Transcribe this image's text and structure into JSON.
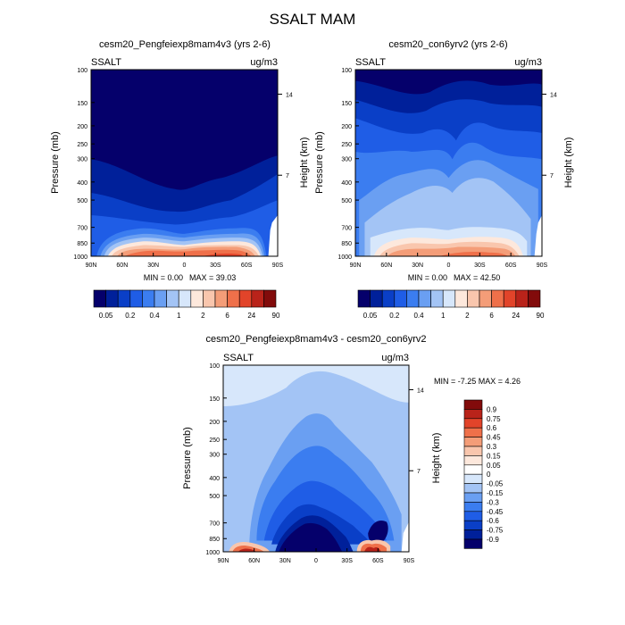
{
  "figure_title": "SSALT MAM",
  "chart_data": [
    {
      "type": "heatmap",
      "title": "cesm20_Pengfeiexp8mam4v3 (yrs 2-6)",
      "corner_left": "SSALT",
      "corner_right": "ug/m3",
      "ylabel": "Pressure (mb)",
      "ylabel_right": "Height (km)",
      "x_ticks": [
        "90N",
        "60N",
        "30N",
        "0",
        "30S",
        "60S",
        "90S"
      ],
      "y_ticks": [
        "100",
        "150",
        "200",
        "250",
        "300",
        "400",
        "500",
        "700",
        "850",
        "1000"
      ],
      "y_right_ticks": [
        "14",
        "7"
      ],
      "min_label": "MIN =   0.00",
      "max_label": "MAX =  39.03",
      "colorbar_levels": [
        "0.05",
        "0.2",
        "0.4",
        "1",
        "2",
        "6",
        "24",
        "90"
      ],
      "field": "scenario_a"
    },
    {
      "type": "heatmap",
      "title": "cesm20_con6yrv2 (yrs 2-6)",
      "corner_left": "SSALT",
      "corner_right": "ug/m3",
      "ylabel": "Pressure (mb)",
      "ylabel_right": "Height (km)",
      "x_ticks": [
        "90N",
        "60N",
        "30N",
        "0",
        "30S",
        "60S",
        "90S"
      ],
      "y_ticks": [
        "100",
        "150",
        "200",
        "250",
        "300",
        "400",
        "500",
        "700",
        "850",
        "1000"
      ],
      "y_right_ticks": [
        "14",
        "7"
      ],
      "min_label": "MIN =   0.00",
      "max_label": "MAX =  42.50",
      "colorbar_levels": [
        "0.05",
        "0.2",
        "0.4",
        "1",
        "2",
        "6",
        "24",
        "90"
      ],
      "field": "scenario_b"
    },
    {
      "type": "heatmap",
      "title": "cesm20_Pengfeiexp8mam4v3 - cesm20_con6yrv2",
      "corner_left": "SSALT",
      "corner_right": "ug/m3",
      "ylabel": "Pressure (mb)",
      "ylabel_right": "Height (km)",
      "x_ticks": [
        "90N",
        "60N",
        "30N",
        "0",
        "30S",
        "60S",
        "90S"
      ],
      "y_ticks": [
        "100",
        "150",
        "200",
        "250",
        "300",
        "400",
        "500",
        "700",
        "850",
        "1000"
      ],
      "y_right_ticks": [
        "14",
        "7"
      ],
      "minmax_label": "MIN = -7.25  MAX =   4.26",
      "colorbar_levels": [
        "0.9",
        "0.75",
        "0.6",
        "0.45",
        "0.3",
        "0.15",
        "0.05",
        "0",
        "-0.05",
        "-0.15",
        "-0.3",
        "-0.45",
        "-0.6",
        "-0.75",
        "-0.9"
      ],
      "field": "difference"
    }
  ],
  "colors": {
    "seq_blue_to_red": [
      "#05006b",
      "#00209a",
      "#0a3fc7",
      "#1f5de6",
      "#3b7df0",
      "#6a9ff2",
      "#a3c4f5",
      "#d7e7fb",
      "#fde8dc",
      "#f9c6ad",
      "#f49d78",
      "#ef704a",
      "#e2442a",
      "#b9231a",
      "#820b0b"
    ],
    "diff_scale_top_to_bottom": [
      "#820b0b",
      "#b9231a",
      "#e2442a",
      "#ef704a",
      "#f49d78",
      "#f9c6ad",
      "#fde8dc",
      "#ffffff",
      "#d7e7fb",
      "#a3c4f5",
      "#6a9ff2",
      "#3b7df0",
      "#1f5de6",
      "#0a3fc7",
      "#00209a",
      "#05006b"
    ]
  }
}
